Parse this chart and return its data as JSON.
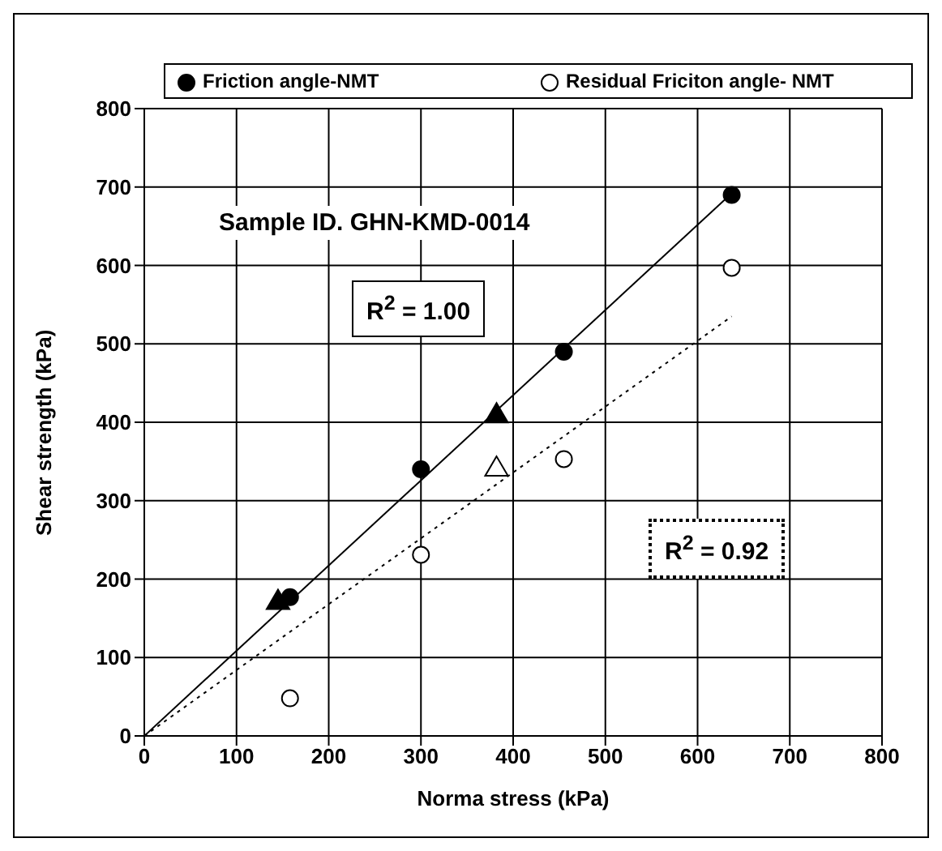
{
  "chart_data": {
    "type": "scatter",
    "xlabel": "Norma stress (kPa)",
    "ylabel": "Shear strength (kPa)",
    "xlim": [
      0,
      800
    ],
    "xticks": [
      0,
      100,
      200,
      300,
      400,
      500,
      600,
      700,
      800
    ],
    "ylim": [
      0,
      800
    ],
    "yticks": [
      0,
      100,
      200,
      300,
      400,
      500,
      600,
      700,
      800
    ],
    "grid": true,
    "legend": "top",
    "annotations": [
      "Sample ID. GHN-KMD-0014",
      "R$^{2}$ = 1.00",
      "R$^{2}$ = 0.92"
    ],
    "series": [
      {
        "name": "Friction angle-NMT",
        "color": "#000000",
        "marker": "circle",
        "x": [
          158,
          300,
          455,
          637
        ],
        "values": [
          177,
          340,
          490,
          690
        ]
      },
      {
        "name": "Residual Friciton angle- NMT",
        "color": "#ffffff",
        "marker": "circle",
        "x": [
          158,
          300,
          455,
          637
        ],
        "values": [
          48,
          231,
          353,
          597
        ]
      },
      {
        "color": "#000000",
        "marker": "triangle",
        "x": [
          145,
          382
        ],
        "values": [
          172,
          410
        ]
      },
      {
        "color": "#ffffff",
        "marker": "triangle",
        "x": [
          382
        ],
        "values": [
          342
        ]
      },
      {
        "type": "line",
        "color": "#000000",
        "marker": "none",
        "line_style": "solid",
        "x": [
          0,
          637
        ],
        "values": [
          0,
          692
        ]
      },
      {
        "type": "line",
        "color": "#000000",
        "marker": "none",
        "line_style": "dotted",
        "x": [
          0,
          637
        ],
        "values": [
          0,
          535
        ]
      }
    ]
  }
}
